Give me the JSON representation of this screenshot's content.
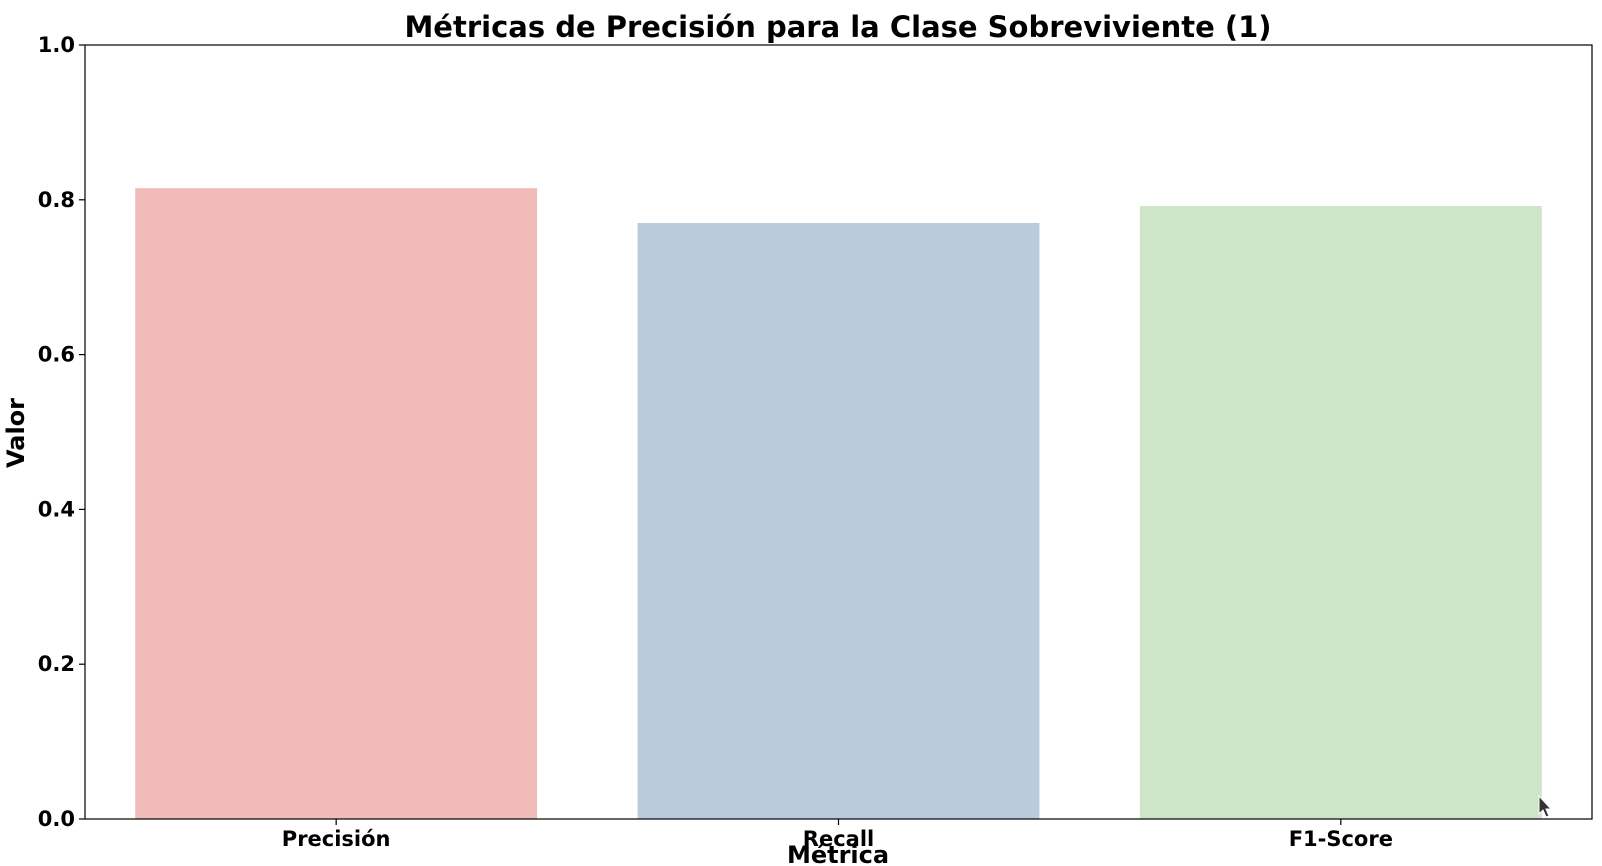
{
  "chart_data": {
    "type": "bar",
    "title": "Métricas de Precisión para la Clase Sobreviviente (1)",
    "xlabel": "Métrica",
    "ylabel": "Valor",
    "categories": [
      "Precisión",
      "Recall",
      "F1-Score"
    ],
    "values": [
      0.815,
      0.77,
      0.792
    ],
    "colors": [
      "#f0bbb8",
      "#b9cbdd",
      "#cfe5c8"
    ],
    "ylim": [
      0,
      1.0
    ],
    "yticks": [
      "0.0",
      "0.2",
      "0.4",
      "0.6",
      "0.8",
      "1.0"
    ],
    "grid": false,
    "legend": "none"
  },
  "overlay": {
    "cursor_icon": "mouse-pointer-icon"
  }
}
